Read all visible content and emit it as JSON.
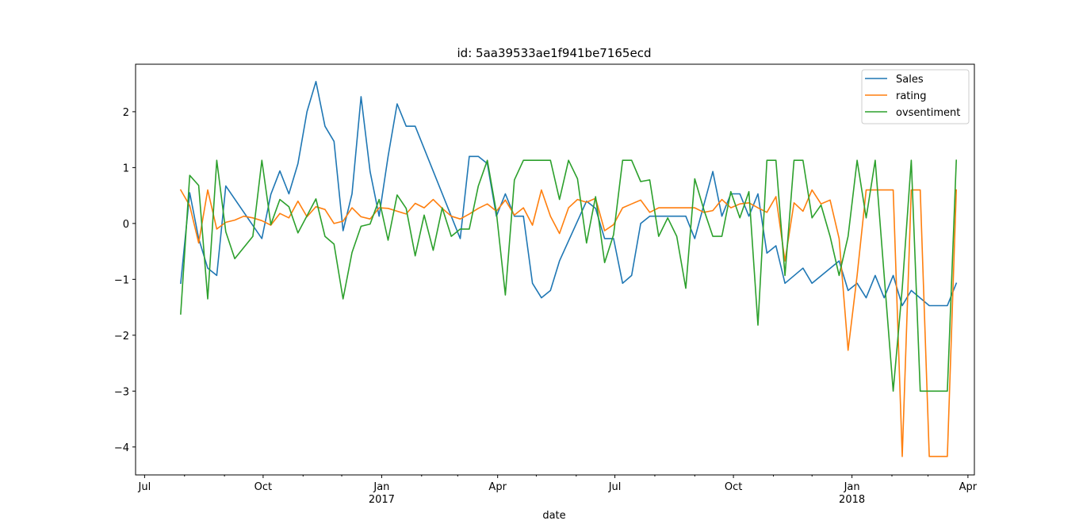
{
  "chart_data": {
    "type": "line",
    "title": "id: 5aa39533ae1f941be7165ecd",
    "xlabel": "date",
    "ylabel": "",
    "ylim": [
      -4.5,
      2.85
    ],
    "xlim": [
      "2016-06-24",
      "2018-04-06"
    ],
    "yticks": [
      2,
      1,
      0,
      -1,
      -2,
      -3,
      -4
    ],
    "ytick_labels": [
      "2",
      "1",
      "0",
      "−1",
      "−2",
      "−3",
      "−4"
    ],
    "xticks": [
      {
        "date": "2016-07-01",
        "label": "Jul",
        "sub": ""
      },
      {
        "date": "2016-10-01",
        "label": "Oct",
        "sub": ""
      },
      {
        "date": "2017-01-01",
        "label": "Jan",
        "sub": "2017"
      },
      {
        "date": "2017-04-01",
        "label": "Apr",
        "sub": ""
      },
      {
        "date": "2017-07-01",
        "label": "Jul",
        "sub": ""
      },
      {
        "date": "2017-10-01",
        "label": "Oct",
        "sub": ""
      },
      {
        "date": "2018-01-01",
        "label": "Jan",
        "sub": "2018"
      },
      {
        "date": "2018-04-01",
        "label": "Apr",
        "sub": ""
      }
    ],
    "minor_xticks": [
      "2016-08-01",
      "2016-09-01",
      "2016-11-01",
      "2016-12-01",
      "2017-02-01",
      "2017-03-01",
      "2017-05-01",
      "2017-06-01",
      "2017-08-01",
      "2017-09-01",
      "2017-11-01",
      "2017-12-01",
      "2018-02-01",
      "2018-03-01"
    ],
    "legend": {
      "position": "top-right"
    },
    "grid": false,
    "series": [
      {
        "name": "Sales",
        "color": "#1f77b4",
        "points": [
          [
            "2016-07-29",
            -1.07
          ],
          [
            "2016-08-05",
            0.55
          ],
          [
            "2016-08-12",
            -0.27
          ],
          [
            "2016-08-19",
            -0.8
          ],
          [
            "2016-08-26",
            -0.93
          ],
          [
            "2016-09-02",
            0.67
          ],
          [
            "2016-09-30",
            -0.27
          ],
          [
            "2016-10-07",
            0.52
          ],
          [
            "2016-10-14",
            0.94
          ],
          [
            "2016-10-21",
            0.53
          ],
          [
            "2016-10-28",
            1.07
          ],
          [
            "2016-11-04",
            2.0
          ],
          [
            "2016-11-11",
            2.54
          ],
          [
            "2016-11-18",
            1.74
          ],
          [
            "2016-11-25",
            1.47
          ],
          [
            "2016-12-02",
            -0.13
          ],
          [
            "2016-12-09",
            0.53
          ],
          [
            "2016-12-16",
            2.27
          ],
          [
            "2016-12-23",
            0.93
          ],
          [
            "2016-12-30",
            0.13
          ],
          [
            "2017-01-06",
            1.2
          ],
          [
            "2017-01-13",
            2.14
          ],
          [
            "2017-01-20",
            1.74
          ],
          [
            "2017-01-27",
            1.74
          ],
          [
            "2017-03-03",
            -0.27
          ],
          [
            "2017-03-10",
            1.2
          ],
          [
            "2017-03-17",
            1.2
          ],
          [
            "2017-03-24",
            1.07
          ],
          [
            "2017-03-31",
            0.13
          ],
          [
            "2017-04-07",
            0.53
          ],
          [
            "2017-04-14",
            0.13
          ],
          [
            "2017-04-21",
            0.13
          ],
          [
            "2017-04-28",
            -1.07
          ],
          [
            "2017-05-05",
            -1.33
          ],
          [
            "2017-05-12",
            -1.2
          ],
          [
            "2017-05-19",
            -0.67
          ],
          [
            "2017-06-09",
            0.4
          ],
          [
            "2017-06-16",
            0.27
          ],
          [
            "2017-06-23",
            -0.27
          ],
          [
            "2017-06-30",
            -0.27
          ],
          [
            "2017-07-07",
            -1.07
          ],
          [
            "2017-07-14",
            -0.93
          ],
          [
            "2017-07-21",
            0.0
          ],
          [
            "2017-07-28",
            0.13
          ],
          [
            "2017-08-25",
            0.13
          ],
          [
            "2017-09-01",
            -0.27
          ],
          [
            "2017-09-15",
            0.93
          ],
          [
            "2017-09-22",
            0.13
          ],
          [
            "2017-09-29",
            0.53
          ],
          [
            "2017-10-06",
            0.53
          ],
          [
            "2017-10-13",
            0.13
          ],
          [
            "2017-10-20",
            0.53
          ],
          [
            "2017-10-27",
            -0.53
          ],
          [
            "2017-11-03",
            -0.4
          ],
          [
            "2017-11-10",
            -1.07
          ],
          [
            "2017-11-24",
            -0.8
          ],
          [
            "2017-12-01",
            -1.07
          ],
          [
            "2017-12-22",
            -0.67
          ],
          [
            "2017-12-29",
            -1.2
          ],
          [
            "2018-01-05",
            -1.07
          ],
          [
            "2018-01-12",
            -1.33
          ],
          [
            "2018-01-19",
            -0.93
          ],
          [
            "2018-01-26",
            -1.33
          ],
          [
            "2018-02-02",
            -0.93
          ],
          [
            "2018-02-09",
            -1.47
          ],
          [
            "2018-02-16",
            -1.2
          ],
          [
            "2018-03-02",
            -1.47
          ],
          [
            "2018-03-16",
            -1.47
          ],
          [
            "2018-03-23",
            -1.07
          ]
        ]
      },
      {
        "name": "rating",
        "color": "#ff7f0e",
        "points": [
          [
            "2016-07-29",
            0.6
          ],
          [
            "2016-08-05",
            0.32
          ],
          [
            "2016-08-12",
            -0.35
          ],
          [
            "2016-08-19",
            0.6
          ],
          [
            "2016-08-26",
            -0.1
          ],
          [
            "2016-09-02",
            0.02
          ],
          [
            "2016-09-09",
            0.06
          ],
          [
            "2016-09-16",
            0.13
          ],
          [
            "2016-09-23",
            0.1
          ],
          [
            "2016-09-30",
            0.05
          ],
          [
            "2016-10-07",
            -0.03
          ],
          [
            "2016-10-14",
            0.18
          ],
          [
            "2016-10-21",
            0.1
          ],
          [
            "2016-10-28",
            0.4
          ],
          [
            "2016-11-04",
            0.12
          ],
          [
            "2016-11-11",
            0.3
          ],
          [
            "2016-11-18",
            0.25
          ],
          [
            "2016-11-25",
            0.0
          ],
          [
            "2016-12-02",
            0.04
          ],
          [
            "2016-12-09",
            0.28
          ],
          [
            "2016-12-16",
            0.12
          ],
          [
            "2016-12-23",
            0.08
          ],
          [
            "2016-12-30",
            0.28
          ],
          [
            "2017-01-06",
            0.27
          ],
          [
            "2017-01-13",
            0.22
          ],
          [
            "2017-01-20",
            0.17
          ],
          [
            "2017-01-27",
            0.36
          ],
          [
            "2017-02-03",
            0.28
          ],
          [
            "2017-02-10",
            0.43
          ],
          [
            "2017-02-17",
            0.27
          ],
          [
            "2017-02-24",
            0.13
          ],
          [
            "2017-03-03",
            0.08
          ],
          [
            "2017-03-10",
            0.17
          ],
          [
            "2017-03-17",
            0.27
          ],
          [
            "2017-03-24",
            0.35
          ],
          [
            "2017-03-31",
            0.22
          ],
          [
            "2017-04-07",
            0.42
          ],
          [
            "2017-04-14",
            0.15
          ],
          [
            "2017-04-21",
            0.28
          ],
          [
            "2017-04-28",
            -0.03
          ],
          [
            "2017-05-05",
            0.6
          ],
          [
            "2017-05-12",
            0.13
          ],
          [
            "2017-05-19",
            -0.18
          ],
          [
            "2017-05-26",
            0.28
          ],
          [
            "2017-06-02",
            0.43
          ],
          [
            "2017-06-09",
            0.38
          ],
          [
            "2017-06-16",
            0.45
          ],
          [
            "2017-06-23",
            -0.13
          ],
          [
            "2017-06-30",
            -0.02
          ],
          [
            "2017-07-07",
            0.28
          ],
          [
            "2017-07-14",
            0.35
          ],
          [
            "2017-07-21",
            0.42
          ],
          [
            "2017-07-28",
            0.2
          ],
          [
            "2017-08-04",
            0.28
          ],
          [
            "2017-08-25",
            0.28
          ],
          [
            "2017-09-01",
            0.28
          ],
          [
            "2017-09-08",
            0.2
          ],
          [
            "2017-09-15",
            0.23
          ],
          [
            "2017-09-22",
            0.43
          ],
          [
            "2017-09-29",
            0.28
          ],
          [
            "2017-10-06",
            0.35
          ],
          [
            "2017-10-13",
            0.37
          ],
          [
            "2017-10-20",
            0.28
          ],
          [
            "2017-10-27",
            0.2
          ],
          [
            "2017-11-03",
            0.48
          ],
          [
            "2017-11-10",
            -0.67
          ],
          [
            "2017-11-17",
            0.37
          ],
          [
            "2017-11-24",
            0.22
          ],
          [
            "2017-12-01",
            0.6
          ],
          [
            "2017-12-08",
            0.35
          ],
          [
            "2017-12-15",
            0.42
          ],
          [
            "2017-12-22",
            -0.27
          ],
          [
            "2017-12-29",
            -2.27
          ],
          [
            "2018-01-05",
            -0.93
          ],
          [
            "2018-01-12",
            0.6
          ],
          [
            "2018-02-02",
            0.6
          ],
          [
            "2018-02-09",
            -4.17
          ],
          [
            "2018-02-16",
            0.6
          ],
          [
            "2018-02-23",
            0.6
          ],
          [
            "2018-03-02",
            -4.17
          ],
          [
            "2018-03-16",
            -4.17
          ],
          [
            "2018-03-23",
            0.6
          ]
        ]
      },
      {
        "name": "ovsentiment",
        "color": "#2ca02c",
        "points": [
          [
            "2016-07-29",
            -1.62
          ],
          [
            "2016-08-05",
            0.86
          ],
          [
            "2016-08-12",
            0.68
          ],
          [
            "2016-08-19",
            -1.35
          ],
          [
            "2016-08-26",
            1.13
          ],
          [
            "2016-09-02",
            -0.15
          ],
          [
            "2016-09-09",
            -0.63
          ],
          [
            "2016-09-23",
            -0.23
          ],
          [
            "2016-09-30",
            1.13
          ],
          [
            "2016-10-07",
            -0.02
          ],
          [
            "2016-10-14",
            0.43
          ],
          [
            "2016-10-21",
            0.3
          ],
          [
            "2016-10-28",
            -0.17
          ],
          [
            "2016-11-11",
            0.44
          ],
          [
            "2016-11-18",
            -0.23
          ],
          [
            "2016-11-25",
            -0.37
          ],
          [
            "2016-12-02",
            -1.35
          ],
          [
            "2016-12-09",
            -0.52
          ],
          [
            "2016-12-16",
            -0.05
          ],
          [
            "2016-12-23",
            -0.01
          ],
          [
            "2016-12-30",
            0.43
          ],
          [
            "2017-01-06",
            -0.3
          ],
          [
            "2017-01-13",
            0.51
          ],
          [
            "2017-01-20",
            0.27
          ],
          [
            "2017-01-27",
            -0.58
          ],
          [
            "2017-02-03",
            0.15
          ],
          [
            "2017-02-10",
            -0.48
          ],
          [
            "2017-02-17",
            0.28
          ],
          [
            "2017-02-24",
            -0.23
          ],
          [
            "2017-03-03",
            -0.1
          ],
          [
            "2017-03-10",
            -0.1
          ],
          [
            "2017-03-17",
            0.67
          ],
          [
            "2017-03-24",
            1.13
          ],
          [
            "2017-03-31",
            0.2
          ],
          [
            "2017-04-07",
            -1.28
          ],
          [
            "2017-04-14",
            0.78
          ],
          [
            "2017-04-21",
            1.13
          ],
          [
            "2017-04-28",
            1.13
          ],
          [
            "2017-05-05",
            1.13
          ],
          [
            "2017-05-12",
            1.13
          ],
          [
            "2017-05-19",
            0.43
          ],
          [
            "2017-05-26",
            1.13
          ],
          [
            "2017-06-02",
            0.8
          ],
          [
            "2017-06-09",
            -0.35
          ],
          [
            "2017-06-16",
            0.48
          ],
          [
            "2017-06-23",
            -0.7
          ],
          [
            "2017-06-30",
            -0.2
          ],
          [
            "2017-07-07",
            1.13
          ],
          [
            "2017-07-14",
            1.13
          ],
          [
            "2017-07-21",
            0.75
          ],
          [
            "2017-07-28",
            0.78
          ],
          [
            "2017-08-04",
            -0.23
          ],
          [
            "2017-08-11",
            0.1
          ],
          [
            "2017-08-18",
            -0.23
          ],
          [
            "2017-08-25",
            -1.16
          ],
          [
            "2017-09-01",
            0.8
          ],
          [
            "2017-09-08",
            0.25
          ],
          [
            "2017-09-15",
            -0.23
          ],
          [
            "2017-09-22",
            -0.23
          ],
          [
            "2017-09-29",
            0.57
          ],
          [
            "2017-10-06",
            0.1
          ],
          [
            "2017-10-13",
            0.57
          ],
          [
            "2017-10-20",
            -1.82
          ],
          [
            "2017-10-27",
            1.13
          ],
          [
            "2017-11-03",
            1.13
          ],
          [
            "2017-11-10",
            -0.93
          ],
          [
            "2017-11-17",
            1.13
          ],
          [
            "2017-11-24",
            1.13
          ],
          [
            "2017-12-01",
            0.1
          ],
          [
            "2017-12-08",
            0.33
          ],
          [
            "2017-12-15",
            -0.23
          ],
          [
            "2017-12-22",
            -0.93
          ],
          [
            "2017-12-29",
            -0.23
          ],
          [
            "2018-01-05",
            1.13
          ],
          [
            "2018-01-12",
            0.1
          ],
          [
            "2018-01-19",
            1.13
          ],
          [
            "2018-01-26",
            -0.93
          ],
          [
            "2018-02-02",
            -3.0
          ],
          [
            "2018-02-09",
            -1.16
          ],
          [
            "2018-02-16",
            1.13
          ],
          [
            "2018-02-23",
            -3.0
          ],
          [
            "2018-03-16",
            -3.0
          ],
          [
            "2018-03-23",
            1.13
          ]
        ]
      }
    ]
  }
}
